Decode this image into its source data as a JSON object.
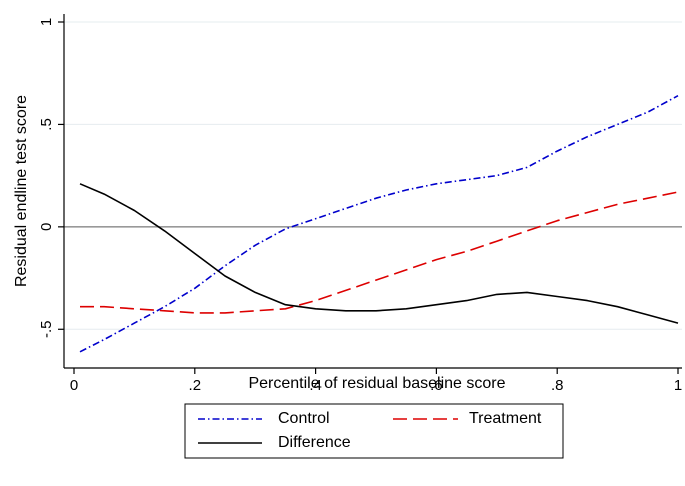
{
  "chart_data": {
    "type": "line",
    "xlabel": "Percentile of residual baseline score",
    "ylabel": "Residual endline test score",
    "xlim": [
      0,
      1
    ],
    "ylim": [
      -0.65,
      1
    ],
    "x_ticks": [
      {
        "value": 0,
        "label": "0"
      },
      {
        "value": 0.2,
        "label": ".2"
      },
      {
        "value": 0.4,
        "label": ".4"
      },
      {
        "value": 0.6,
        "label": ".6"
      },
      {
        "value": 0.8,
        "label": ".8"
      },
      {
        "value": 1,
        "label": "1"
      }
    ],
    "y_ticks": [
      {
        "value": -0.5,
        "label": "-.5"
      },
      {
        "value": 0,
        "label": "0"
      },
      {
        "value": 0.5,
        "label": ".5"
      },
      {
        "value": 1,
        "label": "1"
      }
    ],
    "grid": true,
    "reference_line_y": 0,
    "legend_position": "bottom",
    "series": [
      {
        "name": "Control",
        "color": "#0000cc",
        "style": "dash-dot",
        "x": [
          0.01,
          0.05,
          0.1,
          0.15,
          0.2,
          0.25,
          0.3,
          0.35,
          0.4,
          0.45,
          0.5,
          0.55,
          0.6,
          0.65,
          0.7,
          0.75,
          0.8,
          0.85,
          0.9,
          0.95,
          1.0
        ],
        "values": [
          -0.61,
          -0.55,
          -0.47,
          -0.39,
          -0.3,
          -0.19,
          -0.09,
          -0.01,
          0.04,
          0.09,
          0.14,
          0.18,
          0.21,
          0.23,
          0.25,
          0.29,
          0.37,
          0.44,
          0.5,
          0.56,
          0.64
        ]
      },
      {
        "name": "Treatment",
        "color": "#dd0000",
        "style": "long-dash",
        "x": [
          0.01,
          0.05,
          0.1,
          0.15,
          0.2,
          0.25,
          0.3,
          0.35,
          0.4,
          0.45,
          0.5,
          0.55,
          0.6,
          0.65,
          0.7,
          0.75,
          0.8,
          0.85,
          0.9,
          0.95,
          1.0
        ],
        "values": [
          -0.39,
          -0.39,
          -0.4,
          -0.41,
          -0.42,
          -0.42,
          -0.41,
          -0.4,
          -0.36,
          -0.31,
          -0.26,
          -0.21,
          -0.16,
          -0.12,
          -0.07,
          -0.02,
          0.03,
          0.07,
          0.11,
          0.14,
          0.17
        ]
      },
      {
        "name": "Difference",
        "color": "#000000",
        "style": "solid",
        "x": [
          0.01,
          0.05,
          0.1,
          0.15,
          0.2,
          0.25,
          0.3,
          0.35,
          0.4,
          0.45,
          0.5,
          0.55,
          0.6,
          0.65,
          0.7,
          0.75,
          0.8,
          0.85,
          0.9,
          0.95,
          1.0
        ],
        "values": [
          0.21,
          0.16,
          0.08,
          -0.02,
          -0.13,
          -0.24,
          -0.32,
          -0.38,
          -0.4,
          -0.41,
          -0.41,
          -0.4,
          -0.38,
          -0.36,
          -0.33,
          -0.32,
          -0.34,
          -0.36,
          -0.39,
          -0.43,
          -0.47
        ]
      }
    ]
  }
}
